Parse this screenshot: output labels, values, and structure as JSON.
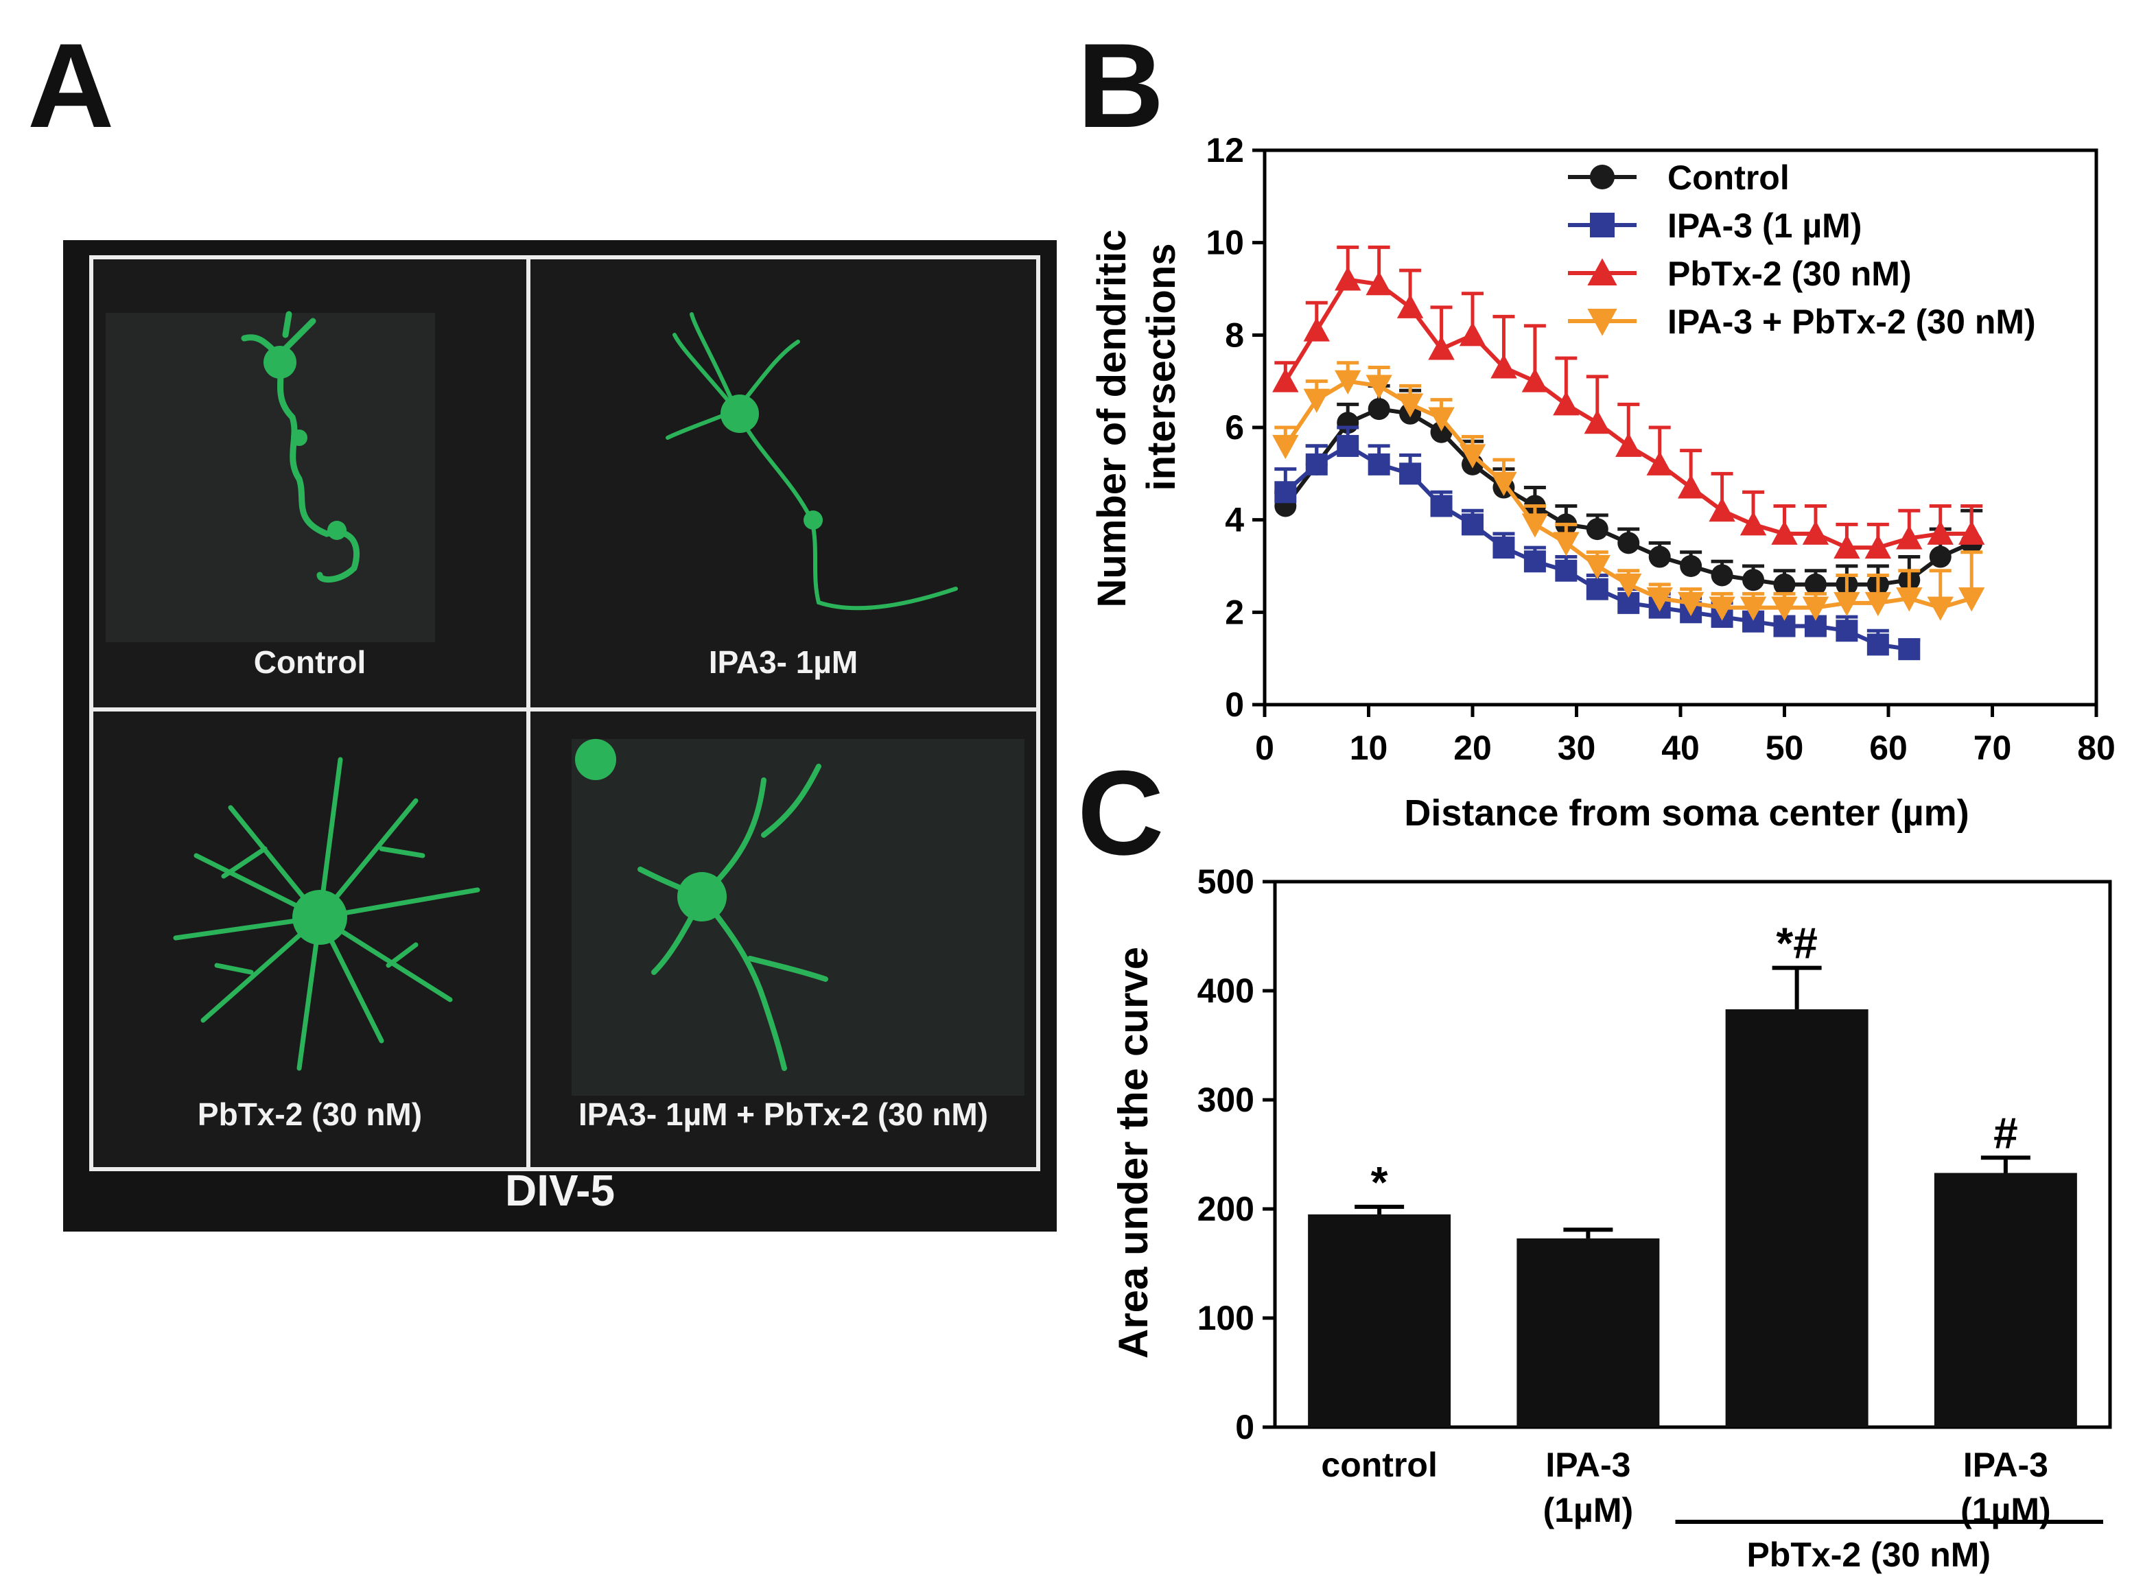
{
  "panels": {
    "a": "A",
    "b": "B",
    "c": "C"
  },
  "micrographs": {
    "cells": [
      {
        "label": "Control"
      },
      {
        "label": "IPA3- 1µM"
      },
      {
        "label": "PbTx-2 (30 nM)"
      },
      {
        "label": "IPA3- 1µM + PbTx-2 (30 nM)"
      }
    ],
    "caption": "DIV-5",
    "neurite_color": "#2bb35a"
  },
  "chart_data": [
    {
      "type": "line",
      "xlabel": "Distance from soma center (µm)",
      "ylabel": [
        "Number of  dendritic",
        "intersections"
      ],
      "xlim": [
        0,
        80
      ],
      "ylim": [
        0,
        12
      ],
      "xticks": [
        0,
        10,
        20,
        30,
        40,
        50,
        60,
        70,
        80
      ],
      "yticks": [
        0,
        2,
        4,
        6,
        8,
        10,
        12
      ],
      "legend_position": "top-right",
      "series": [
        {
          "name": "Control",
          "color": "#1b1b1b",
          "marker": "circle",
          "x": [
            2,
            5,
            8,
            11,
            14,
            17,
            20,
            23,
            26,
            29,
            32,
            35,
            38,
            41,
            44,
            47,
            50,
            53,
            56,
            59,
            62,
            65,
            68
          ],
          "y": [
            4.3,
            5.2,
            6.1,
            6.4,
            6.3,
            5.9,
            5.2,
            4.7,
            4.3,
            3.9,
            3.8,
            3.5,
            3.2,
            3.0,
            2.8,
            2.7,
            2.6,
            2.6,
            2.6,
            2.6,
            2.7,
            3.2,
            3.5
          ],
          "err": [
            0.3,
            0.4,
            0.4,
            0.5,
            0.5,
            0.5,
            0.5,
            0.4,
            0.4,
            0.4,
            0.3,
            0.3,
            0.3,
            0.3,
            0.3,
            0.3,
            0.3,
            0.3,
            0.4,
            0.4,
            0.5,
            0.6,
            0.7
          ]
        },
        {
          "name": "IPA-3 (1 µM)",
          "color": "#2f3a96",
          "marker": "square",
          "x": [
            2,
            5,
            8,
            11,
            14,
            17,
            20,
            23,
            26,
            29,
            32,
            35,
            38,
            41,
            44,
            47,
            50,
            53,
            56,
            59,
            62
          ],
          "y": [
            4.6,
            5.2,
            5.6,
            5.2,
            5.0,
            4.3,
            3.9,
            3.4,
            3.1,
            2.9,
            2.5,
            2.2,
            2.1,
            2.0,
            1.9,
            1.8,
            1.7,
            1.7,
            1.6,
            1.3,
            1.2
          ],
          "err": [
            0.5,
            0.4,
            0.4,
            0.4,
            0.4,
            0.3,
            0.3,
            0.3,
            0.3,
            0.3,
            0.3,
            0.3,
            0.3,
            0.3,
            0.3,
            0.2,
            0.2,
            0.2,
            0.3,
            0.3,
            0.2
          ]
        },
        {
          "name": "PbTx-2 (30 nM)",
          "color": "#e02a2a",
          "marker": "triangle-up",
          "x": [
            2,
            5,
            8,
            11,
            14,
            17,
            20,
            23,
            26,
            29,
            32,
            35,
            38,
            41,
            44,
            47,
            50,
            53,
            56,
            59,
            62,
            65,
            68
          ],
          "y": [
            7.0,
            8.1,
            9.2,
            9.1,
            8.6,
            7.7,
            8.0,
            7.3,
            7.0,
            6.5,
            6.1,
            5.6,
            5.2,
            4.7,
            4.2,
            3.9,
            3.7,
            3.7,
            3.4,
            3.4,
            3.6,
            3.7,
            3.7
          ],
          "err": [
            0.4,
            0.6,
            0.7,
            0.8,
            0.8,
            0.9,
            0.9,
            1.1,
            1.2,
            1.0,
            1.0,
            0.9,
            0.8,
            0.8,
            0.8,
            0.7,
            0.6,
            0.6,
            0.5,
            0.5,
            0.6,
            0.6,
            0.6
          ]
        },
        {
          "name": "IPA-3 + PbTx-2 (30 nM)",
          "color": "#f39a2a",
          "marker": "triangle-down",
          "x": [
            2,
            5,
            8,
            11,
            14,
            17,
            20,
            23,
            26,
            29,
            32,
            35,
            38,
            41,
            44,
            47,
            50,
            53,
            56,
            59,
            62,
            65,
            68
          ],
          "y": [
            5.6,
            6.6,
            7.0,
            6.9,
            6.5,
            6.2,
            5.4,
            4.8,
            3.9,
            3.5,
            3.0,
            2.6,
            2.3,
            2.2,
            2.1,
            2.1,
            2.1,
            2.1,
            2.2,
            2.2,
            2.3,
            2.1,
            2.3
          ],
          "err": [
            0.4,
            0.4,
            0.4,
            0.4,
            0.4,
            0.4,
            0.4,
            0.5,
            0.4,
            0.4,
            0.3,
            0.3,
            0.3,
            0.3,
            0.3,
            0.3,
            0.3,
            0.3,
            0.6,
            0.6,
            0.6,
            0.8,
            1.0
          ]
        }
      ]
    },
    {
      "type": "bar",
      "ylabel": "Area under the curve",
      "ylim": [
        0,
        500
      ],
      "yticks": [
        0,
        100,
        200,
        300,
        400,
        500
      ],
      "bar_color": "#111111",
      "categories": [
        [
          "control"
        ],
        [
          "IPA-3",
          "(1µM)"
        ],
        [],
        [
          "IPA-3",
          "(1µM)"
        ]
      ],
      "values": [
        195,
        173,
        383,
        233
      ],
      "errors": [
        7,
        8,
        38,
        14
      ],
      "annotations": [
        "*",
        "",
        "*#",
        "#"
      ],
      "group_label": "PbTx-2 (30 nM)"
    }
  ]
}
